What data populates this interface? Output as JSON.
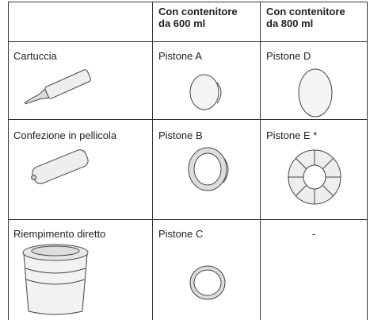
{
  "table": {
    "header": [
      "Con contenitore da 600 ml",
      "Con contenitore da 800 ml"
    ],
    "rows": [
      [
        "Cartuccia",
        "Pistone A",
        "Pistone D"
      ],
      [
        "Confezione in pellicola",
        "Pistone B",
        "Pistone E *"
      ],
      [
        "Riempimento diretto",
        "Pistone C",
        "-"
      ]
    ]
  }
}
